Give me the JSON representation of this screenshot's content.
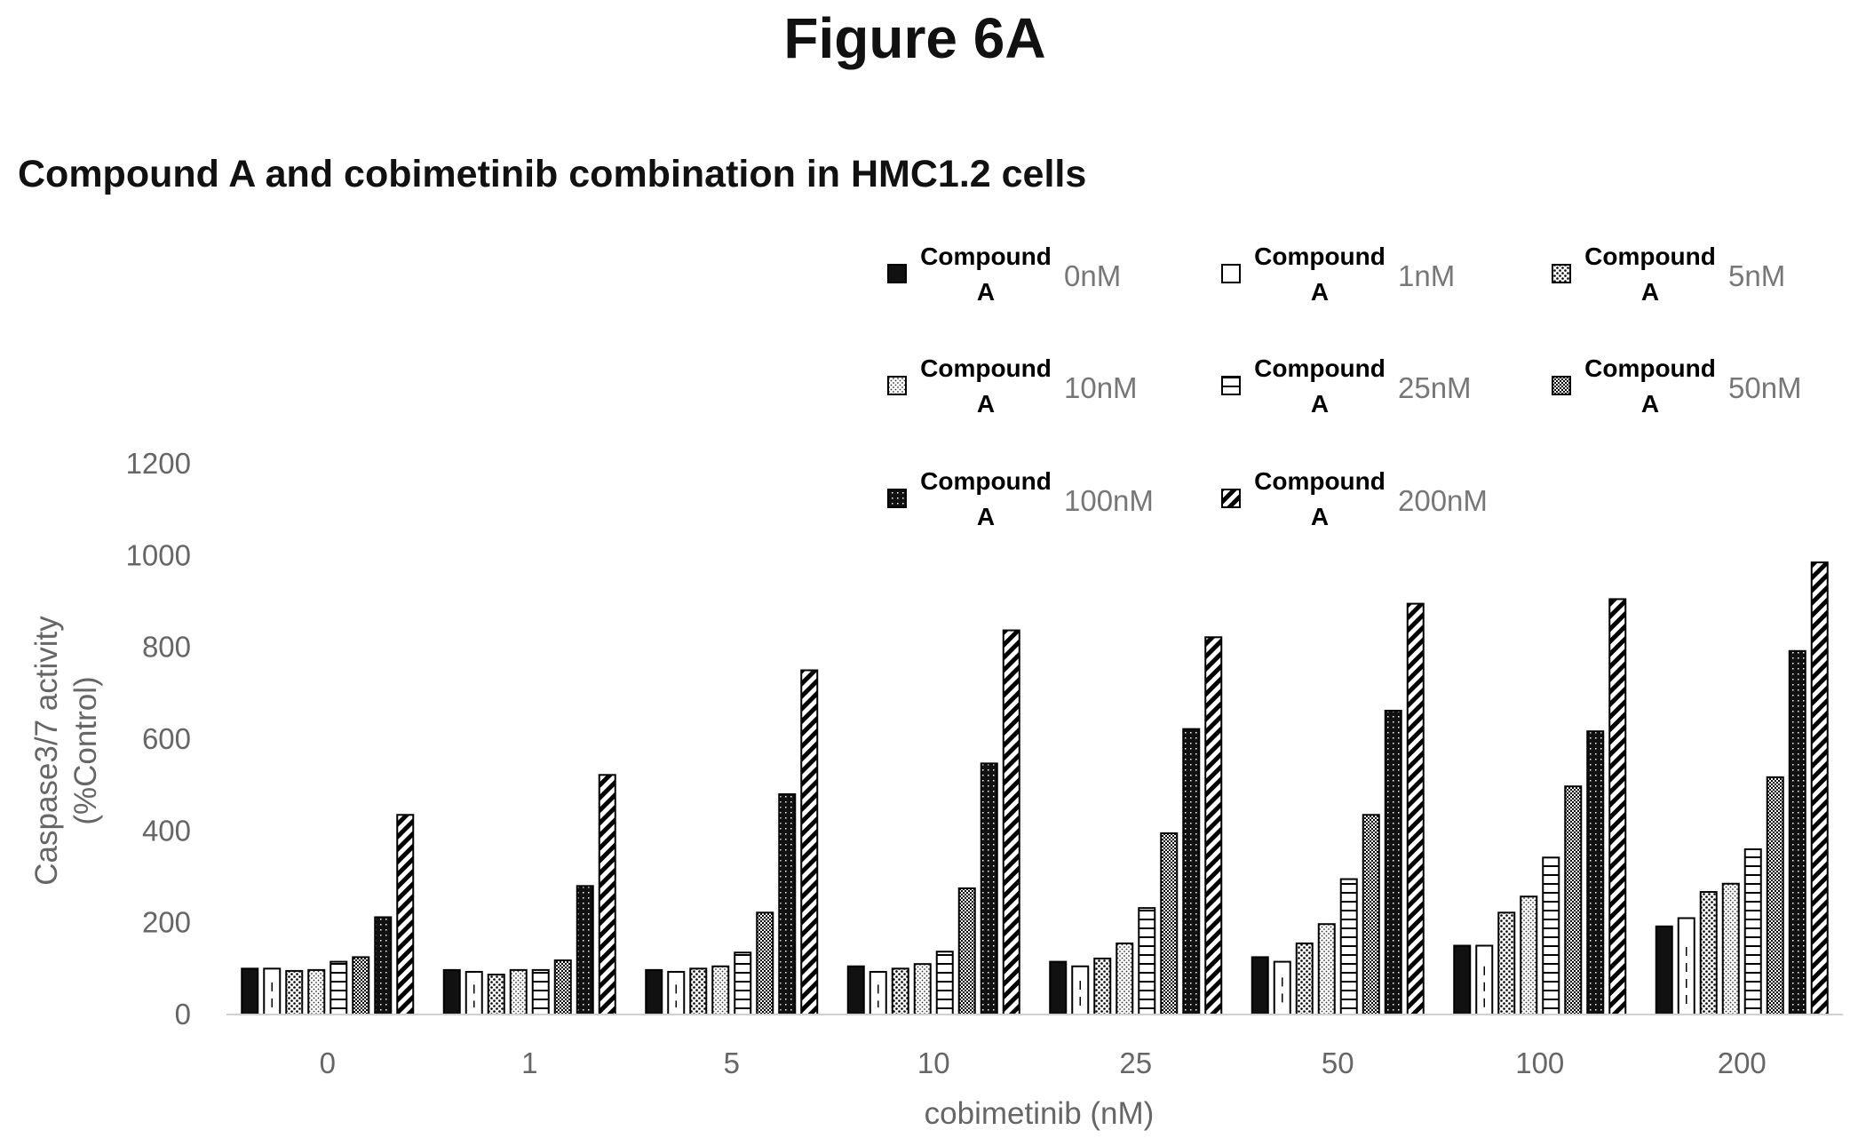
{
  "figure_title": "Figure 6A",
  "chart_data": {
    "type": "bar",
    "title": "Compound A and cobimetinib combination in HMC1.2 cells",
    "xlabel": "cobimetinib (nM)",
    "ylabel_line1": "Caspase3/7 activity",
    "ylabel_line2": "(%Control)",
    "ylim": [
      0,
      1200
    ],
    "yticks": [
      "0",
      "200",
      "400",
      "600",
      "800",
      "1000",
      "1200"
    ],
    "categories": [
      "0",
      "1",
      "5",
      "10",
      "25",
      "50",
      "100",
      "200"
    ],
    "legend_position": "top-right",
    "series": [
      {
        "name": "Compound A",
        "conc": "0nM",
        "values": [
          100,
          97,
          97,
          105,
          115,
          125,
          150,
          192
        ]
      },
      {
        "name": "Compound A",
        "conc": "1nM",
        "values": [
          100,
          93,
          93,
          93,
          105,
          115,
          150,
          210
        ]
      },
      {
        "name": "Compound A",
        "conc": "5nM",
        "values": [
          95,
          87,
          100,
          100,
          122,
          155,
          222,
          267
        ]
      },
      {
        "name": "Compound A",
        "conc": "10nM",
        "values": [
          97,
          97,
          105,
          110,
          155,
          197,
          257,
          285
        ]
      },
      {
        "name": "Compound A",
        "conc": "25nM",
        "values": [
          115,
          97,
          135,
          137,
          232,
          295,
          342,
          360
        ]
      },
      {
        "name": "Compound A",
        "conc": "50nM",
        "values": [
          125,
          118,
          222,
          275,
          395,
          435,
          497,
          517
        ]
      },
      {
        "name": "Compound A",
        "conc": "100nM",
        "values": [
          212,
          280,
          480,
          547,
          622,
          662,
          617,
          792
        ]
      },
      {
        "name": "Compound A",
        "conc": "200nM",
        "values": [
          435,
          522,
          750,
          837,
          822,
          895,
          905,
          985
        ]
      }
    ]
  }
}
